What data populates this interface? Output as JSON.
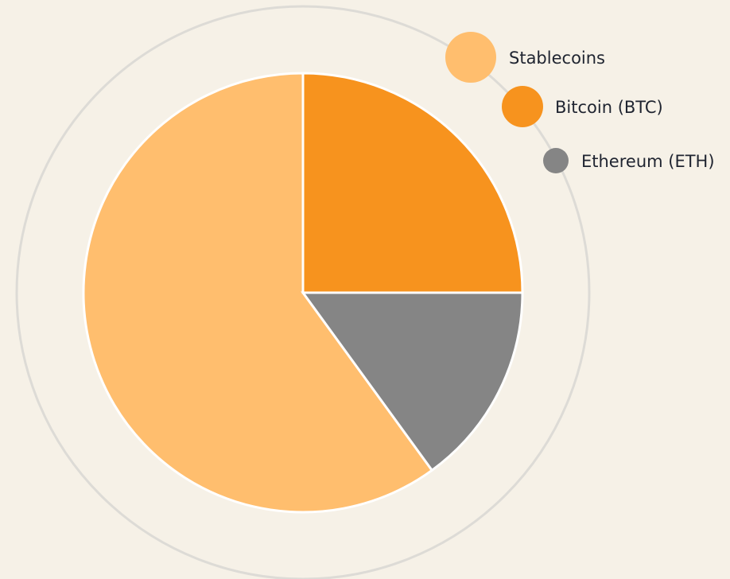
{
  "chart_data": {
    "type": "pie",
    "categories": [
      "Stablecoins",
      "Bitcoin (BTC)",
      "Ethereum (ETH)"
    ],
    "values": [
      60,
      25,
      15
    ],
    "colors": [
      "#ffbe6e",
      "#f7931e",
      "#858585"
    ]
  }
}
